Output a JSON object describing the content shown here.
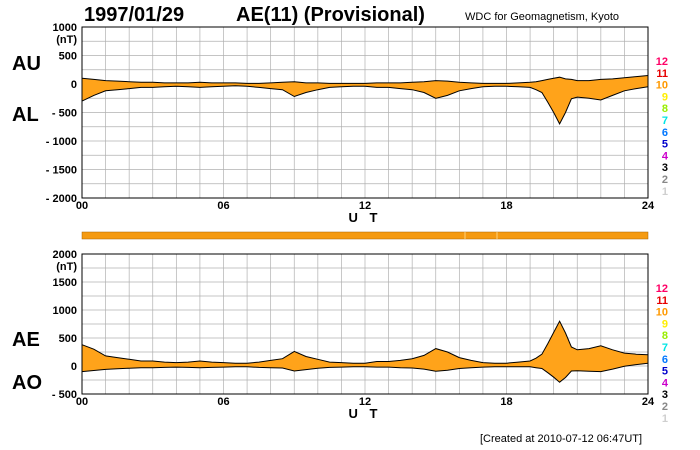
{
  "header": {
    "date": "1997/01/29",
    "title": "AE(11) (Provisional)",
    "credit": "WDC for Geomagnetism, Kyoto"
  },
  "footer": {
    "created": "[Created at 2010-07-12 06:47UT]"
  },
  "colors": {
    "fill": "#ffa31a",
    "line": "#000000",
    "grid": "#b0b0b0",
    "bar": "#f59a10"
  },
  "legend_levels": [
    {
      "label": "12",
      "color": "#ff0066"
    },
    {
      "label": "11",
      "color": "#e60000"
    },
    {
      "label": "10",
      "color": "#ff9900"
    },
    {
      "label": "9",
      "color": "#ffee00"
    },
    {
      "label": "8",
      "color": "#99ee00"
    },
    {
      "label": "7",
      "color": "#00e5e5"
    },
    {
      "label": "6",
      "color": "#0077ff"
    },
    {
      "label": "5",
      "color": "#0000cc"
    },
    {
      "label": "4",
      "color": "#cc00cc"
    },
    {
      "label": "3",
      "color": "#000000"
    },
    {
      "label": "2",
      "color": "#888888"
    },
    {
      "label": "1",
      "color": "#cfcfcf"
    }
  ],
  "chart_data": [
    {
      "type": "area",
      "series_labels": {
        "upper": "AU",
        "lower": "AL"
      },
      "unit": "(nT)",
      "xlabel": "U T",
      "xlim": [
        0,
        24
      ],
      "ylim": [
        -2000,
        1000
      ],
      "yticks": [
        "1000",
        "500",
        "0",
        "- 500",
        "- 1000",
        "- 1500",
        "- 2000"
      ],
      "ytick_values": [
        1000,
        500,
        0,
        -500,
        -1000,
        -1500,
        -2000
      ],
      "xticks": [
        "00",
        "06",
        "12",
        "18",
        "24"
      ],
      "xtick_values": [
        0,
        6,
        12,
        18,
        24
      ],
      "grid": true,
      "x": [
        0,
        0.5,
        1,
        1.5,
        2,
        2.5,
        3,
        3.5,
        4,
        4.5,
        5,
        5.5,
        6,
        6.5,
        7,
        7.5,
        8,
        8.5,
        9,
        9.5,
        10,
        10.5,
        11,
        11.5,
        12,
        12.5,
        13,
        13.5,
        14,
        14.5,
        15,
        15.5,
        16,
        16.5,
        17,
        17.5,
        18,
        18.5,
        19,
        19.25,
        19.5,
        19.75,
        20,
        20.25,
        20.5,
        20.75,
        21,
        21.5,
        22,
        22.5,
        23,
        23.5,
        24
      ],
      "upper": [
        100,
        80,
        60,
        50,
        40,
        30,
        30,
        20,
        20,
        20,
        30,
        20,
        20,
        20,
        10,
        10,
        20,
        30,
        40,
        20,
        20,
        10,
        10,
        10,
        10,
        20,
        20,
        20,
        30,
        40,
        60,
        50,
        30,
        20,
        10,
        10,
        10,
        20,
        30,
        40,
        60,
        80,
        100,
        120,
        90,
        80,
        60,
        60,
        80,
        90,
        110,
        130,
        150
      ],
      "lower": [
        -300,
        -200,
        -120,
        -100,
        -80,
        -60,
        -60,
        -50,
        -40,
        -50,
        -60,
        -50,
        -40,
        -30,
        -40,
        -60,
        -80,
        -100,
        -220,
        -150,
        -100,
        -60,
        -50,
        -40,
        -40,
        -60,
        -60,
        -80,
        -100,
        -150,
        -250,
        -200,
        -120,
        -80,
        -50,
        -40,
        -40,
        -50,
        -60,
        -100,
        -150,
        -320,
        -500,
        -700,
        -500,
        -260,
        -230,
        -250,
        -280,
        -200,
        -120,
        -80,
        -50
      ]
    },
    {
      "type": "area",
      "series_labels": {
        "upper": "AE",
        "lower": "AO"
      },
      "unit": "(nT)",
      "xlabel": "U T",
      "xlim": [
        0,
        24
      ],
      "ylim": [
        -500,
        2000
      ],
      "yticks": [
        "2000",
        "1500",
        "1000",
        "500",
        "0",
        "- 500"
      ],
      "ytick_values": [
        2000,
        1500,
        1000,
        500,
        0,
        -500
      ],
      "xticks": [
        "00",
        "06",
        "12",
        "18",
        "24"
      ],
      "xtick_values": [
        0,
        6,
        12,
        18,
        24
      ],
      "grid": true,
      "x": [
        0,
        0.5,
        1,
        1.5,
        2,
        2.5,
        3,
        3.5,
        4,
        4.5,
        5,
        5.5,
        6,
        6.5,
        7,
        7.5,
        8,
        8.5,
        9,
        9.5,
        10,
        10.5,
        11,
        11.5,
        12,
        12.5,
        13,
        13.5,
        14,
        14.5,
        15,
        15.5,
        16,
        16.5,
        17,
        17.5,
        18,
        18.5,
        19,
        19.25,
        19.5,
        19.75,
        20,
        20.25,
        20.5,
        20.75,
        21,
        21.5,
        22,
        22.5,
        23,
        23.5,
        24
      ],
      "upper": [
        380,
        300,
        180,
        150,
        120,
        90,
        90,
        70,
        60,
        70,
        90,
        70,
        60,
        50,
        50,
        70,
        100,
        130,
        260,
        170,
        120,
        70,
        60,
        50,
        50,
        80,
        80,
        100,
        130,
        190,
        310,
        250,
        150,
        100,
        60,
        50,
        50,
        70,
        90,
        140,
        210,
        400,
        600,
        800,
        590,
        340,
        290,
        310,
        360,
        290,
        230,
        210,
        200
      ],
      "lower": [
        -100,
        -80,
        -60,
        -50,
        -40,
        -30,
        -30,
        -25,
        -20,
        -25,
        -30,
        -25,
        -20,
        -15,
        -15,
        -25,
        -30,
        -35,
        -90,
        -65,
        -40,
        -25,
        -20,
        -15,
        -15,
        -20,
        -20,
        -30,
        -35,
        -55,
        -95,
        -75,
        -45,
        -30,
        -20,
        -15,
        -15,
        -15,
        -15,
        -30,
        -45,
        -120,
        -200,
        -290,
        -205,
        -90,
        -85,
        -95,
        -100,
        -55,
        -5,
        25,
        50
      ]
    }
  ]
}
